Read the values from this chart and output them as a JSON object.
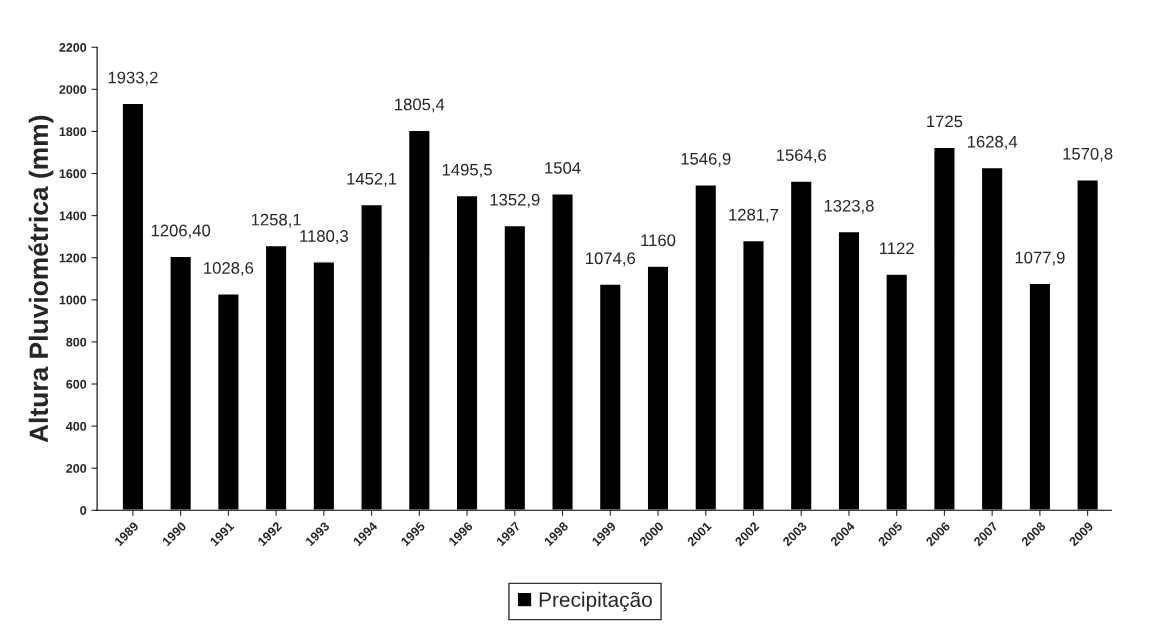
{
  "chart_data": {
    "type": "bar",
    "ylabel": "Altura Pluviométrica (mm)",
    "categories": [
      "1989",
      "1990",
      "1991",
      "1992",
      "1993",
      "1994",
      "1995",
      "1996",
      "1997",
      "1998",
      "1999",
      "2000",
      "2001",
      "2002",
      "2003",
      "2004",
      "2005",
      "2006",
      "2007",
      "2008",
      "2009"
    ],
    "series": [
      {
        "name": "Precipitação",
        "color": "#000000",
        "values": [
          1933.2,
          1206.4,
          1028.6,
          1258.1,
          1180.3,
          1452.1,
          1805.4,
          1495.5,
          1352.9,
          1504,
          1074.6,
          1160,
          1546.9,
          1281.7,
          1564.6,
          1323.8,
          1122,
          1725,
          1628.4,
          1077.9,
          1570.8
        ],
        "value_labels": [
          "1933,2",
          "1206,40",
          "1028,6",
          "1258,1",
          "1180,3",
          "1452,1",
          "1805,4",
          "1495,5",
          "1352,9",
          "1504",
          "1074,6",
          "1160",
          "1546,9",
          "1281,7",
          "1564,6",
          "1323,8",
          "1122",
          "1725",
          "1628,4",
          "1077,9",
          "1570,8"
        ]
      }
    ],
    "ylim": [
      0,
      2200
    ],
    "yticks": [
      0,
      200,
      400,
      600,
      800,
      1000,
      1200,
      1400,
      1600,
      1800,
      2000,
      2200
    ],
    "grid": false,
    "legend": "bottom"
  }
}
